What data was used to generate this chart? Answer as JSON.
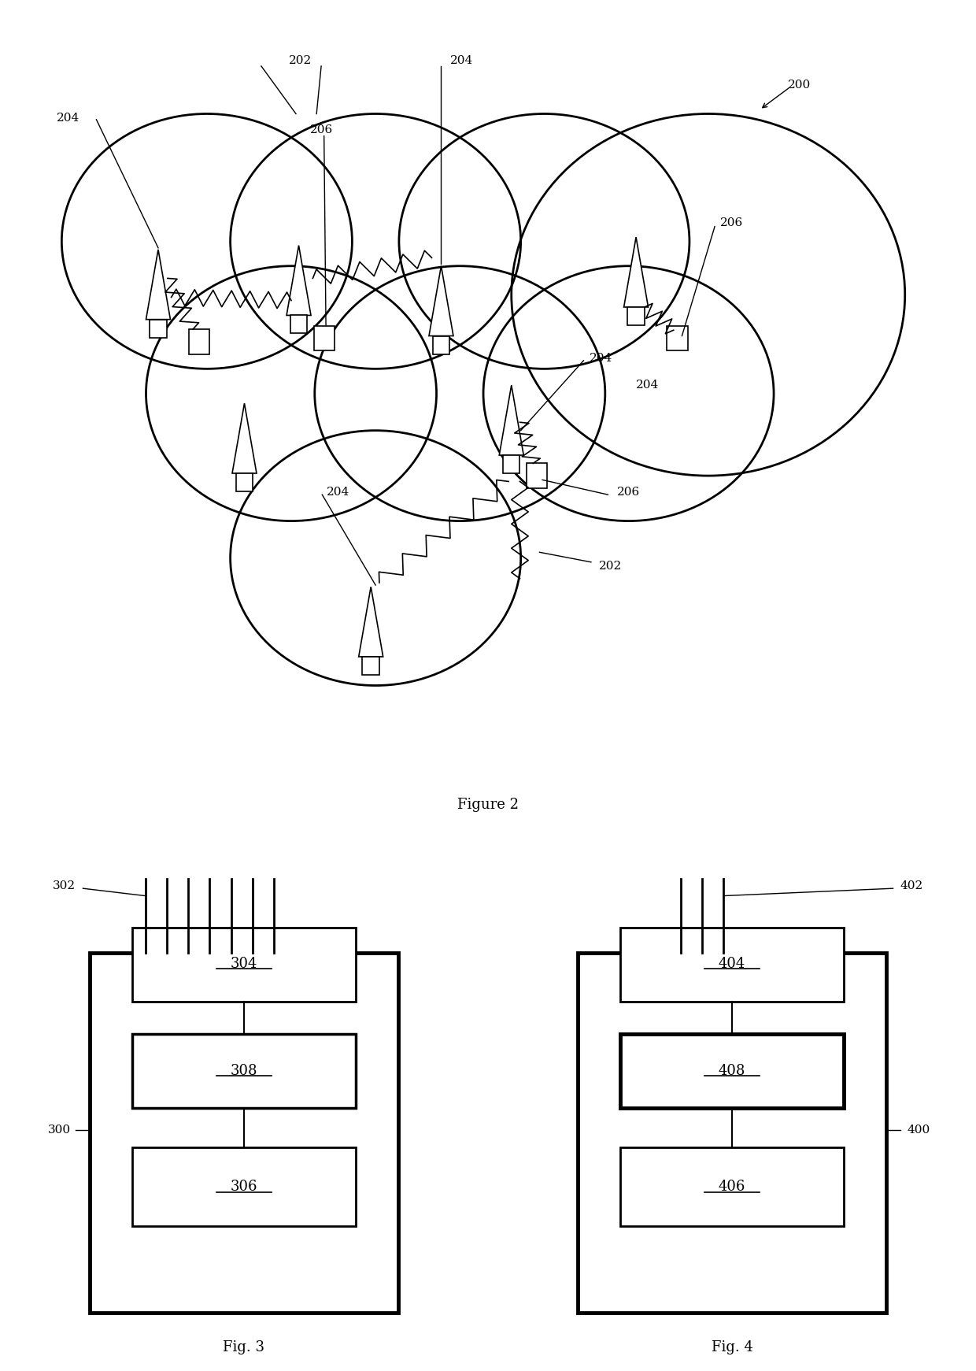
{
  "fig2_title": "Figure 2",
  "fig3_title": "Fig. 3",
  "fig4_title": "Fig. 4",
  "bg_color": "#ffffff",
  "line_color": "#000000",
  "label_color": "#000000"
}
